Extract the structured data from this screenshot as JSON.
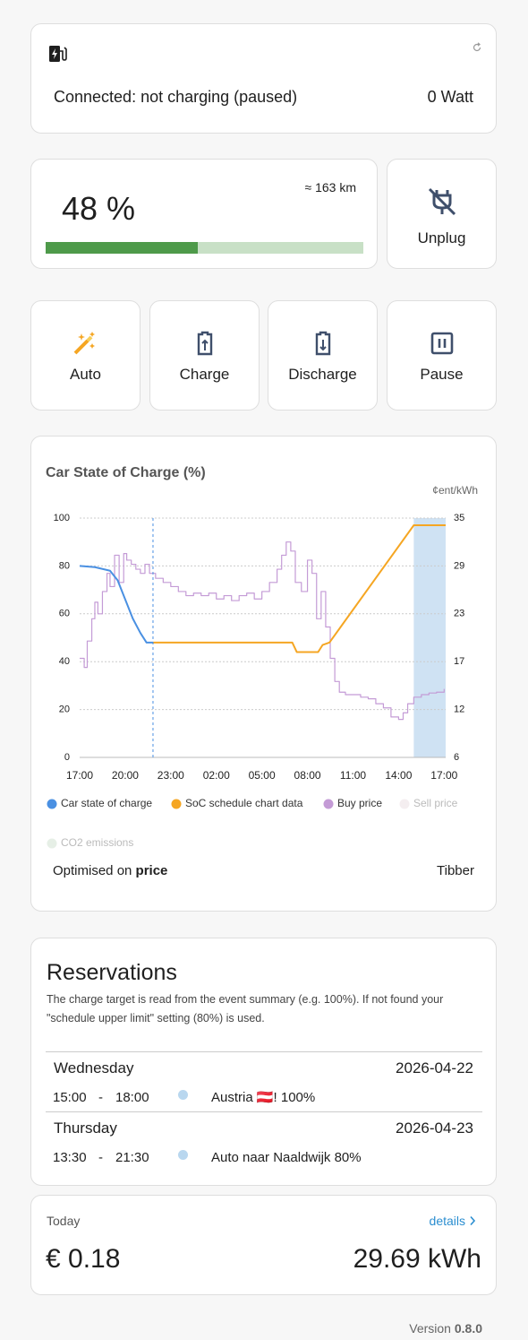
{
  "status": {
    "state": "Connected: not charging (paused)",
    "power": "0 Watt"
  },
  "battery": {
    "soc": 48,
    "soc_label": "48 %",
    "range": "≈ 163 km"
  },
  "unplug_button": "Unplug",
  "mode_buttons": [
    "Auto",
    "Charge",
    "Discharge",
    "Pause"
  ],
  "chart_data": {
    "type": "line",
    "title": "Car State of Charge (%)",
    "y2label": "¢ent/kWh",
    "xlim": [
      0,
      24.1
    ],
    "xticks": [
      {
        "value": 0,
        "label": "17:00"
      },
      {
        "value": 3,
        "label": "20:00"
      },
      {
        "value": 6,
        "label": "23:00"
      },
      {
        "value": 9,
        "label": "02:00"
      },
      {
        "value": 12,
        "label": "05:00"
      },
      {
        "value": 15,
        "label": "08:00"
      },
      {
        "value": 18,
        "label": "11:00"
      },
      {
        "value": 21,
        "label": "14:00"
      },
      {
        "value": 24,
        "label": "17:00"
      }
    ],
    "ylim": [
      0,
      100
    ],
    "yticks": [
      0,
      20,
      40,
      60,
      80,
      100
    ],
    "y2lim": [
      5.8,
      34.8
    ],
    "y2ticks": [
      {
        "value": 5.8,
        "label": "6"
      },
      {
        "value": 11.6,
        "label": "12"
      },
      {
        "value": 17.4,
        "label": "17"
      },
      {
        "value": 23.2,
        "label": "23"
      },
      {
        "value": 29,
        "label": "29"
      },
      {
        "value": 34.8,
        "label": "35"
      }
    ],
    "grid": true,
    "now_x": 4.83,
    "highlight_x": [
      22,
      24.1
    ],
    "highlight_color": "#cfe2f3",
    "series": [
      {
        "name": "Car state of charge",
        "color": "#4a90e2",
        "x": [
          0,
          1,
          2,
          2.5,
          3,
          3.5,
          4,
          4.4,
          4.83
        ],
        "values": [
          80,
          79.5,
          78,
          74,
          66,
          58,
          52,
          48,
          48
        ]
      },
      {
        "name": "SoC schedule chart data",
        "color": "#f5a623",
        "x": [
          4.83,
          14,
          14.3,
          15.7,
          16,
          16.45,
          22,
          24.1
        ],
        "values": [
          48,
          48,
          44,
          44,
          47,
          48,
          97,
          97
        ]
      },
      {
        "name": "Buy price",
        "color": "#c49bd6",
        "axis": "y2",
        "step": true,
        "x": [
          0,
          0.3,
          0.5,
          0.8,
          1,
          1.2,
          1.5,
          1.8,
          2,
          2.3,
          2.6,
          2.9,
          3.1,
          3.4,
          3.7,
          4,
          4.3,
          4.6,
          5,
          5.5,
          6,
          6.5,
          7,
          7.5,
          8,
          8.5,
          9,
          9.5,
          10,
          10.5,
          11,
          11.5,
          12,
          12.5,
          13,
          13.3,
          13.6,
          13.9,
          14.2,
          14.6,
          15,
          15.3,
          15.6,
          15.9,
          16.2,
          16.5,
          16.8,
          17.1,
          17.5,
          18,
          18.5,
          19,
          19.5,
          20,
          20.5,
          21,
          21.3,
          21.6,
          22,
          22.5,
          23,
          23.5,
          24
        ],
        "values": [
          17.8,
          16.7,
          19.9,
          22.6,
          24.6,
          23.2,
          25.9,
          28.1,
          26.5,
          30.3,
          27,
          30.5,
          29.7,
          29.2,
          28.6,
          28.1,
          29.2,
          28.1,
          27.5,
          27,
          26.5,
          25.9,
          25.4,
          25.7,
          25.4,
          25.7,
          25,
          25.4,
          24.8,
          25.4,
          25.7,
          25,
          25.9,
          27,
          28.6,
          30.3,
          31.9,
          30.8,
          27,
          25.9,
          29.7,
          28.1,
          22.6,
          25.9,
          21.6,
          17.8,
          15,
          13.7,
          13.4,
          13.4,
          13.1,
          12.9,
          12.3,
          11.8,
          10.7,
          10.4,
          11.2,
          12.3,
          13.1,
          13.4,
          13.6,
          13.7,
          14.1
        ]
      },
      {
        "name": "Sell price",
        "color": "#f4eef0"
      },
      {
        "name": "CO2 emissions",
        "color": "#e6efe6"
      }
    ]
  },
  "optimisation": {
    "prefix": "Optimised on",
    "target": "price",
    "provider": "Tibber"
  },
  "reservations": {
    "title": "Reservations",
    "description_line1": "The charge target is read from the event summary (e.g. 100%). If not found your",
    "description_line2": "\"schedule upper limit\" setting (80%) is used.",
    "separator": "-",
    "days": [
      {
        "day": "Wednesday",
        "date": "2026-04-22",
        "start": "15:00",
        "end": "18:00",
        "summary": "Austria 🇦🇹! 100%"
      },
      {
        "day": "Thursday",
        "date": "2026-04-23",
        "start": "13:30",
        "end": "21:30",
        "summary": "Auto naar Naaldwijk 80%"
      }
    ]
  },
  "today": {
    "label": "Today",
    "details": "details",
    "cost": "€ 0.18",
    "energy": "29.69 kWh"
  },
  "version": {
    "prefix": "Version",
    "number": "0.8.0"
  }
}
